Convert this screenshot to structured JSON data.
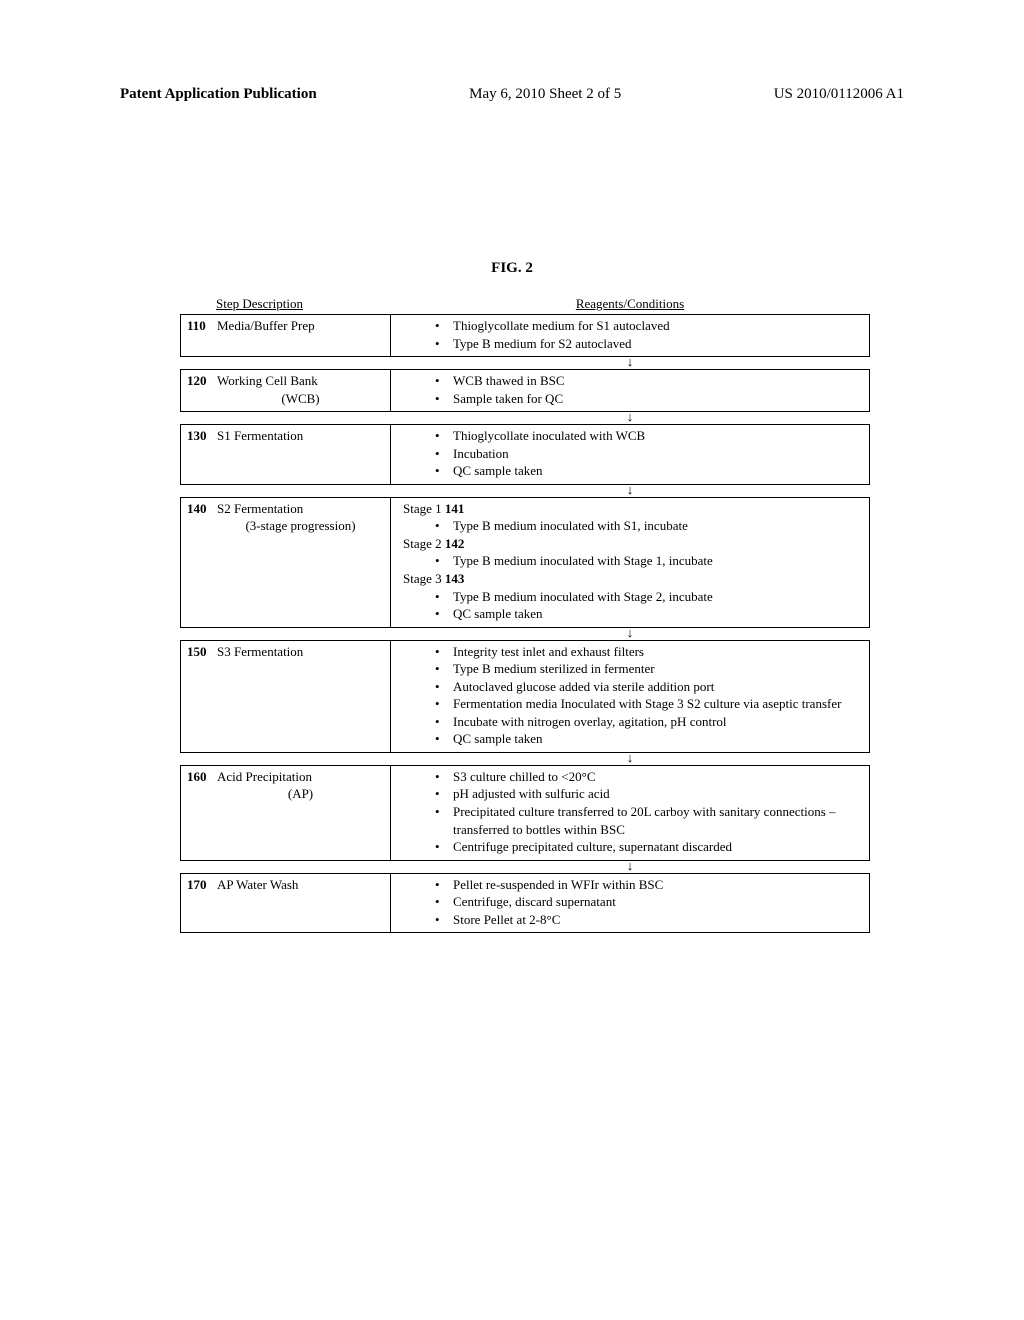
{
  "header": {
    "left": "Patent Application Publication",
    "center": "May 6, 2010  Sheet 2 of 5",
    "right": "US 2010/0112006 A1"
  },
  "figure_title": "FIG. 2",
  "table": {
    "col_headers": {
      "left": "Step Description",
      "right": "Reagents/Conditions"
    },
    "steps": [
      {
        "num": "110",
        "name": "Media/Buffer Prep",
        "sub": "",
        "content": {
          "type": "bullets",
          "items": [
            "Thioglycollate medium for S1 autoclaved",
            "Type B medium for S2 autoclaved"
          ]
        }
      },
      {
        "num": "120",
        "name": "Working Cell Bank",
        "sub": "(WCB)",
        "content": {
          "type": "bullets",
          "items": [
            "WCB thawed in BSC",
            "Sample taken for QC"
          ]
        }
      },
      {
        "num": "130",
        "name": "S1 Fermentation",
        "sub": "",
        "content": {
          "type": "bullets",
          "items": [
            "Thioglycollate inoculated with WCB",
            "Incubation",
            "QC sample taken"
          ]
        }
      },
      {
        "num": "140",
        "name": "S2 Fermentation",
        "sub": "(3-stage progression)",
        "content": {
          "type": "stages",
          "stages": [
            {
              "label": "Stage 1",
              "num": "141",
              "items": [
                "Type B medium inoculated with S1, incubate"
              ]
            },
            {
              "label": "Stage 2",
              "num": "142",
              "items": [
                "Type B medium inoculated with Stage 1, incubate"
              ]
            },
            {
              "label": "Stage 3",
              "num": "143",
              "items": [
                "Type B medium inoculated with Stage 2, incubate",
                "QC sample taken"
              ]
            }
          ]
        }
      },
      {
        "num": "150",
        "name": "S3 Fermentation",
        "sub": "",
        "content": {
          "type": "bullets",
          "items": [
            "Integrity test inlet and exhaust filters",
            "Type B medium sterilized in fermenter",
            "Autoclaved glucose added via sterile addition port",
            "Fermentation media Inoculated with Stage 3 S2 culture via aseptic transfer",
            "Incubate with nitrogen overlay, agitation, pH control",
            "QC sample taken"
          ]
        }
      },
      {
        "num": "160",
        "name": "Acid Precipitation",
        "sub": "(AP)",
        "content": {
          "type": "bullets",
          "items": [
            "S3 culture chilled to <20°C",
            "pH adjusted with sulfuric acid",
            "Precipitated culture transferred to 20L carboy with sanitary connections – transferred to bottles within BSC",
            "Centrifuge precipitated culture, supernatant discarded"
          ]
        }
      },
      {
        "num": "170",
        "name": "AP Water Wash",
        "sub": "",
        "content": {
          "type": "bullets",
          "items": [
            "Pellet re-suspended in WFIr within BSC",
            "Centrifuge, discard supernatant",
            "Store Pellet at 2-8°C"
          ]
        }
      }
    ]
  }
}
